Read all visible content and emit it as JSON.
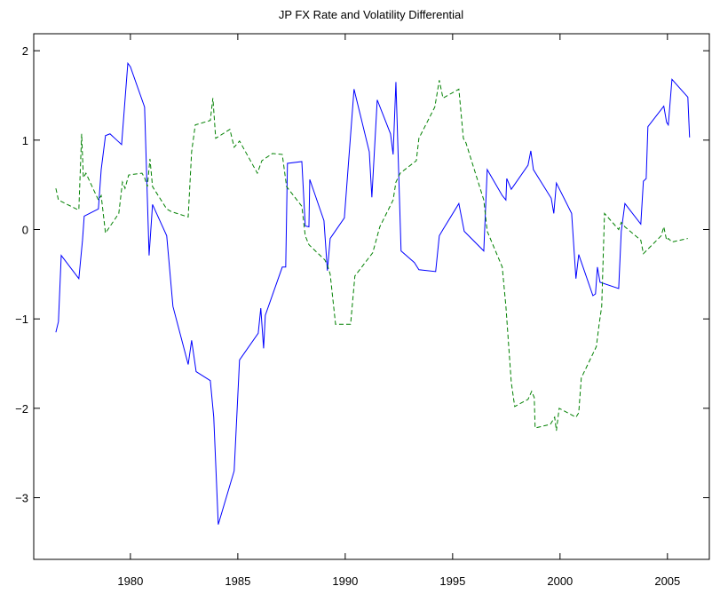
{
  "chart_data": {
    "type": "line",
    "title": "JP FX Rate and Volatility Differential",
    "xlim": [
      1975.5,
      2006.95
    ],
    "ylim": [
      -3.69,
      2.19
    ],
    "xticks": [
      1980,
      1985,
      1990,
      1995,
      2000,
      2005
    ],
    "yticks": [
      {
        "value": -3,
        "label": "−3"
      },
      {
        "value": -2,
        "label": "−2"
      },
      {
        "value": -1,
        "label": "−1"
      },
      0,
      1,
      2
    ],
    "grid": false,
    "series": [
      {
        "color": "#0000ff",
        "linestyle": "solid",
        "x": [
          1976.53,
          1976.65,
          1976.78,
          1977.6,
          1977.77,
          1977.85,
          1978.51,
          1978.64,
          1978.84,
          1979.05,
          1979.59,
          1979.88,
          1980.0,
          1980.66,
          1980.87,
          1981.03,
          1981.69,
          1981.98,
          1982.69,
          1982.85,
          1983.06,
          1983.72,
          1983.88,
          1984.09,
          1984.83,
          1985.08,
          1985.95,
          1986.07,
          1986.2,
          1986.28,
          1987.07,
          1987.23,
          1987.31,
          1987.98,
          1988.14,
          1988.31,
          1988.35,
          1989.01,
          1989.17,
          1989.3,
          1989.96,
          1990.41,
          1991.12,
          1991.24,
          1991.49,
          1992.11,
          1992.23,
          1992.36,
          1992.6,
          1993.22,
          1993.35,
          1993.43,
          1994.21,
          1994.38,
          1994.55,
          1995.29,
          1995.54,
          1996.45,
          1996.61,
          1997.31,
          1997.48,
          1997.52,
          1997.73,
          1998.51,
          1998.64,
          1998.76,
          1999.59,
          1999.71,
          1999.83,
          2000.54,
          2000.74,
          2000.87,
          2001.53,
          2001.65,
          2001.74,
          2001.86,
          2002.73,
          2002.85,
          2003.02,
          2003.76,
          2003.88,
          2004.01,
          2004.09,
          2004.83,
          2004.96,
          2005.04,
          2005.21,
          2005.95,
          2006.03
        ],
        "values": [
          -1.15,
          -1.03,
          -0.29,
          -0.55,
          -0.12,
          0.15,
          0.23,
          0.67,
          1.05,
          1.07,
          0.95,
          1.86,
          1.82,
          1.37,
          -0.29,
          0.28,
          -0.07,
          -0.86,
          -1.51,
          -1.24,
          -1.59,
          -1.69,
          -2.1,
          -3.3,
          -2.7,
          -1.46,
          -1.16,
          -0.88,
          -1.33,
          -0.96,
          -0.42,
          -0.42,
          0.74,
          0.76,
          0.04,
          0.03,
          0.56,
          0.1,
          -0.46,
          -0.1,
          0.13,
          1.57,
          0.87,
          0.36,
          1.45,
          1.07,
          0.84,
          1.65,
          -0.24,
          -0.37,
          -0.42,
          -0.45,
          -0.47,
          -0.07,
          0.0,
          0.29,
          -0.02,
          -0.24,
          0.67,
          0.38,
          0.33,
          0.57,
          0.45,
          0.72,
          0.88,
          0.67,
          0.35,
          0.18,
          0.52,
          0.18,
          -0.55,
          -0.28,
          -0.74,
          -0.72,
          -0.42,
          -0.59,
          -0.66,
          -0.02,
          0.29,
          0.06,
          0.54,
          0.57,
          1.15,
          1.38,
          1.2,
          1.17,
          1.68,
          1.48,
          1.03
        ]
      },
      {
        "color": "#008000",
        "linestyle": "dashed",
        "x": [
          1976.53,
          1976.65,
          1977.48,
          1977.6,
          1977.73,
          1977.81,
          1977.93,
          1978.51,
          1978.64,
          1978.84,
          1979.46,
          1979.63,
          1979.75,
          1979.92,
          1980.54,
          1980.66,
          1980.79,
          1980.91,
          1981.03,
          1981.69,
          1981.9,
          1982.69,
          1982.85,
          1983.02,
          1983.72,
          1983.84,
          1983.97,
          1984.63,
          1984.83,
          1985.08,
          1985.91,
          1986.12,
          1986.61,
          1987.07,
          1987.27,
          1987.98,
          1988.14,
          1988.31,
          1989.05,
          1989.17,
          1989.3,
          1989.55,
          1990.25,
          1990.45,
          1991.28,
          1991.61,
          1992.23,
          1992.36,
          1992.56,
          1993.31,
          1993.43,
          1994.17,
          1994.38,
          1994.55,
          1995.29,
          1995.5,
          1995.62,
          1996.45,
          1996.61,
          1997.31,
          1997.48,
          1997.73,
          1997.89,
          1998.51,
          1998.68,
          1998.8,
          1998.84,
          1999.55,
          1999.75,
          1999.83,
          1999.96,
          2000.74,
          2000.87,
          2000.99,
          2001.69,
          2001.82,
          2001.94,
          2002.07,
          2002.73,
          2002.85,
          2003.02,
          2003.76,
          2003.88,
          2004.71,
          2004.83,
          2004.96,
          2005.04,
          2005.21,
          2005.95
        ],
        "values": [
          0.46,
          0.33,
          0.23,
          0.22,
          1.07,
          0.58,
          0.63,
          0.33,
          0.38,
          -0.04,
          0.18,
          0.53,
          0.46,
          0.61,
          0.63,
          0.58,
          0.48,
          0.79,
          0.48,
          0.23,
          0.2,
          0.14,
          0.87,
          1.17,
          1.22,
          1.47,
          1.02,
          1.12,
          0.92,
          0.99,
          0.63,
          0.77,
          0.85,
          0.84,
          0.48,
          0.26,
          -0.07,
          -0.17,
          -0.34,
          -0.4,
          -0.5,
          -1.06,
          -1.06,
          -0.52,
          -0.26,
          0.03,
          0.33,
          0.53,
          0.63,
          0.77,
          1.02,
          1.37,
          1.67,
          1.47,
          1.57,
          1.02,
          0.97,
          0.33,
          -0.02,
          -0.42,
          -0.86,
          -1.71,
          -1.98,
          -1.9,
          -1.81,
          -1.88,
          -2.22,
          -2.18,
          -2.1,
          -2.25,
          -2.0,
          -2.1,
          -2.05,
          -1.66,
          -1.31,
          -1.06,
          -0.86,
          0.18,
          0.0,
          0.08,
          0.03,
          -0.12,
          -0.27,
          -0.07,
          0.03,
          -0.12,
          -0.1,
          -0.14,
          -0.1
        ]
      }
    ]
  }
}
